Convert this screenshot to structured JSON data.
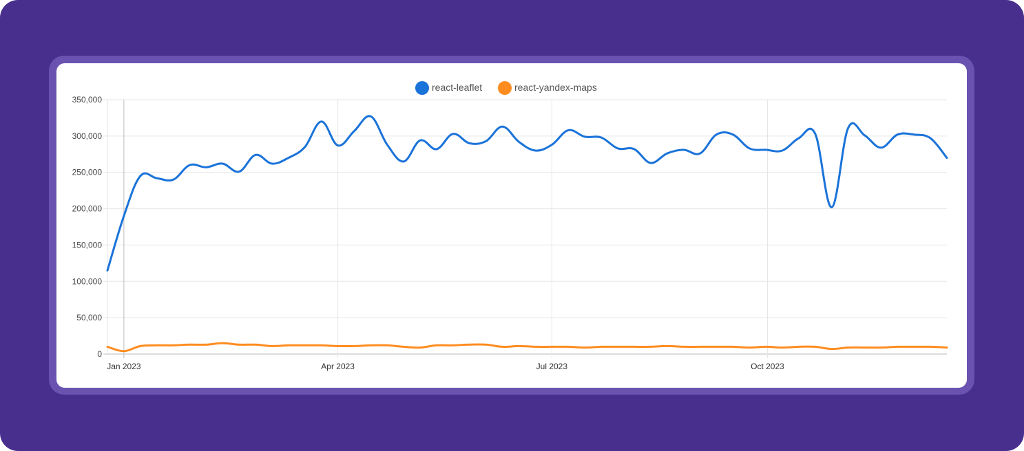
{
  "chart_data": {
    "type": "line",
    "title": "",
    "xlabel": "",
    "ylabel": "",
    "ylim": [
      0,
      350000
    ],
    "xlim": [
      0,
      51
    ],
    "y_ticks": [
      0,
      50000,
      100000,
      150000,
      200000,
      250000,
      300000,
      350000
    ],
    "y_tick_labels": [
      "0",
      "50,000",
      "100,000",
      "150,000",
      "200,000",
      "250,000",
      "300,000",
      "350,000"
    ],
    "x_ticks": [
      {
        "label": "Jan 2023",
        "x": 1
      },
      {
        "label": "Apr 2023",
        "x": 14
      },
      {
        "label": "Jul 2023",
        "x": 27
      },
      {
        "label": "Oct 2023",
        "x": 40.1
      }
    ],
    "legend_position": "top-center",
    "grid": true,
    "x": [
      0,
      1,
      2,
      3,
      4,
      5,
      6,
      7,
      8,
      9,
      10,
      11,
      12,
      13,
      14,
      15,
      16,
      17,
      18,
      19,
      20,
      21,
      22,
      23,
      24,
      25,
      26,
      27,
      28,
      29,
      30,
      31,
      32,
      33,
      34,
      35,
      36,
      37,
      38,
      39,
      40,
      41,
      42,
      43,
      44,
      45,
      46,
      47,
      48,
      49,
      50,
      51
    ],
    "series": [
      {
        "name": "react-leaflet",
        "color": "#1a73d9",
        "values": [
          115000,
          190000,
          245000,
          242000,
          240000,
          260000,
          257000,
          262000,
          251000,
          274000,
          262000,
          270000,
          285000,
          320000,
          287000,
          307000,
          327000,
          288000,
          265000,
          294000,
          282000,
          303000,
          290000,
          293000,
          313000,
          292000,
          280000,
          288000,
          308000,
          299000,
          298000,
          283000,
          282000,
          263000,
          276000,
          281000,
          276000,
          302000,
          302000,
          283000,
          281000,
          280000,
          297000,
          303000,
          202000,
          311000,
          301000,
          284000,
          302000,
          302000,
          297000,
          270000
        ]
      },
      {
        "name": "react-yandex-maps",
        "color": "#ff8c1f",
        "values": [
          10000,
          4000,
          11000,
          12000,
          12000,
          13000,
          13000,
          15000,
          13000,
          13000,
          11000,
          12000,
          12000,
          12000,
          11000,
          11000,
          12000,
          12000,
          10000,
          9000,
          12000,
          12000,
          13000,
          13000,
          10000,
          11000,
          10000,
          10000,
          10000,
          9000,
          10000,
          10000,
          10000,
          10000,
          11000,
          10000,
          10000,
          10000,
          10000,
          9000,
          10000,
          9000,
          10000,
          10000,
          7000,
          9000,
          9000,
          9000,
          10000,
          10000,
          10000,
          9000
        ]
      }
    ]
  }
}
